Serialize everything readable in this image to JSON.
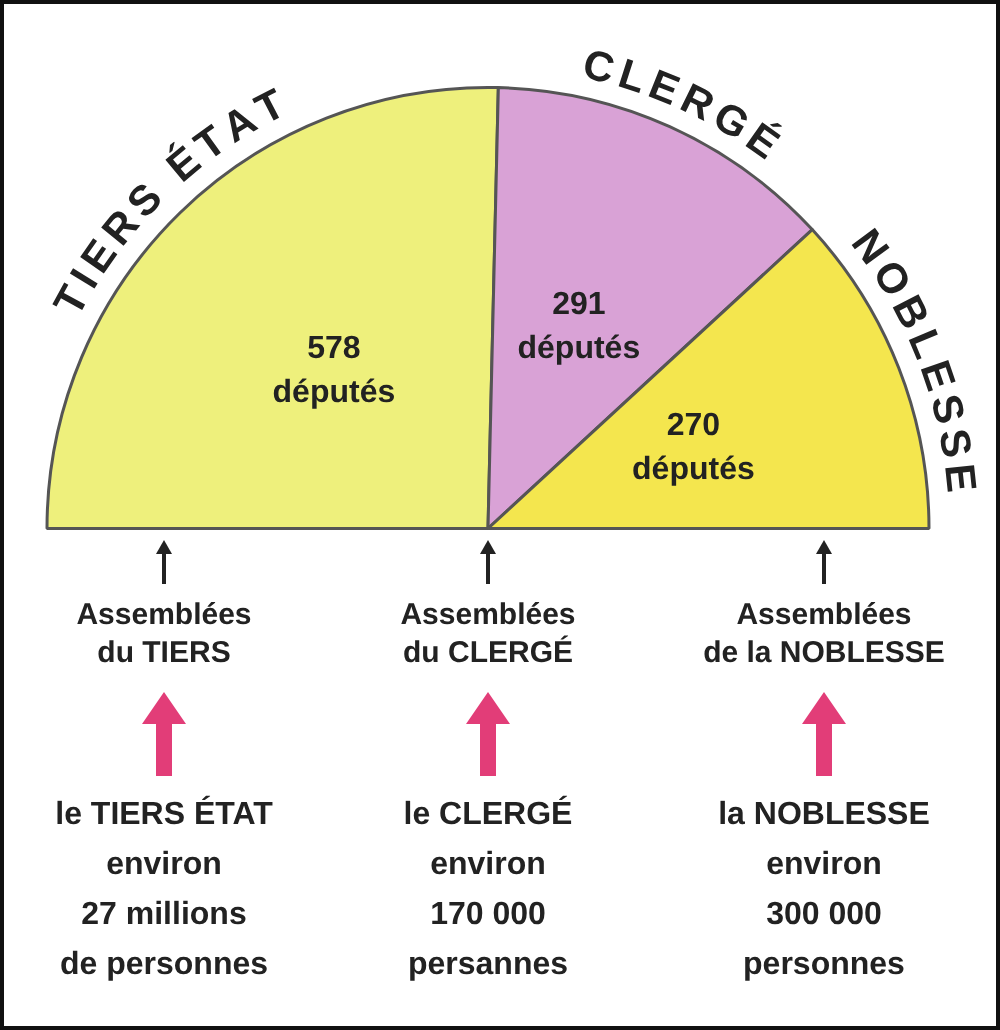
{
  "chart_data": {
    "type": "pie",
    "categories": [
      "TIERS ÉTAT",
      "CLERGÉ",
      "NOBLESSE"
    ],
    "values": [
      578,
      291,
      270
    ],
    "colors": [
      "#eef07c",
      "#d9a2d6",
      "#f4e64e"
    ],
    "value_labels": [
      "578 députés",
      "291 députés",
      "270 députés"
    ],
    "annotations": [
      "Assemblées\ndu TIERS",
      "Assemblées\ndu CLERGÉ",
      "Assemblées\nde la NOBLESSE",
      "le TIERS ÉTAT\nenviron\n27 millions\nde personnes",
      "le CLERGÉ\nenviron\n170 000\npersannes",
      "la NOBLESSE\nenviron\n300 000\npersonnes"
    ]
  }
}
